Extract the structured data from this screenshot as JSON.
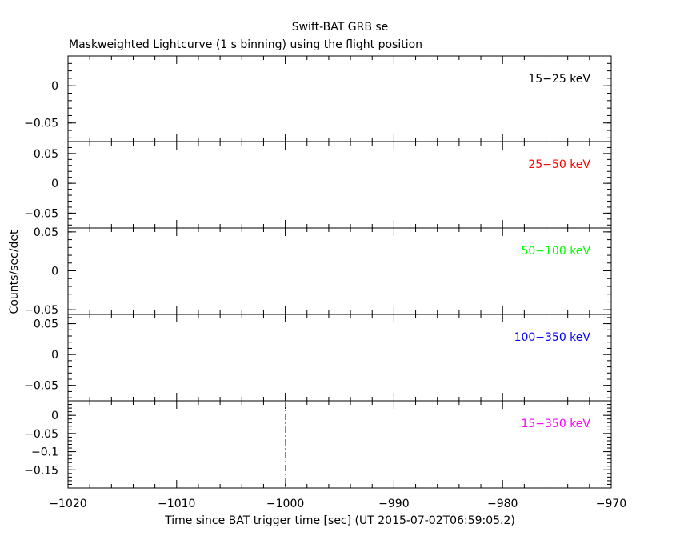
{
  "chart_data": {
    "type": "line",
    "title": "Swift-BAT GRB se",
    "subtitle": "Maskweighted Lightcurve (1 s binning) using the flight position",
    "xlabel": "Time since BAT trigger time [sec] (UT 2015-07-02T06:59:05.2)",
    "ylabel": "Counts/sec/det",
    "xlim": [
      -1020,
      -970
    ],
    "xticks": [
      -1020,
      -1010,
      -1000,
      -990,
      -980,
      -970
    ],
    "xtick_labels": [
      "−1020",
      "−1010",
      "−1000",
      "−990",
      "−980",
      "−970"
    ],
    "trigger_marker": {
      "x": -1000,
      "color": "#00cc00",
      "style": "dash-dot"
    },
    "panels": [
      {
        "label": "15−25 keV",
        "color": "#000000",
        "ylim": [
          -0.075,
          0.04
        ],
        "yticks": [
          0,
          -0.05
        ],
        "ytick_labels": [
          "0",
          "−0.05"
        ],
        "minor_step": 0.01,
        "values": []
      },
      {
        "label": "25−50 keV",
        "color": "#ff0000",
        "ylim": [
          -0.075,
          0.07
        ],
        "yticks": [
          0.05,
          0,
          -0.05
        ],
        "ytick_labels": [
          "0.05",
          "0",
          "−0.05"
        ],
        "minor_step": 0.01,
        "values": []
      },
      {
        "label": "50−100 keV",
        "color": "#00ff00",
        "ylim": [
          -0.056,
          0.055
        ],
        "yticks": [
          0.05,
          0,
          -0.05
        ],
        "ytick_labels": [
          "0.05",
          "0",
          "−0.05"
        ],
        "minor_step": 0.01,
        "values": []
      },
      {
        "label": "100−350 keV",
        "color": "#0000ff",
        "ylim": [
          -0.075,
          0.065
        ],
        "yticks": [
          0.05,
          0,
          -0.05
        ],
        "ytick_labels": [
          "0.05",
          "0",
          "−0.05"
        ],
        "minor_step": 0.01,
        "values": []
      },
      {
        "label": "15−350 keV",
        "color": "#ff00ff",
        "ylim": [
          -0.2,
          0.04
        ],
        "yticks": [
          0,
          -0.05,
          -0.1,
          -0.15
        ],
        "ytick_labels": [
          "0",
          "−0.05",
          "−0.1",
          "−0.15"
        ],
        "minor_step": 0.01,
        "values": []
      }
    ],
    "grid": false,
    "legend": "none"
  }
}
